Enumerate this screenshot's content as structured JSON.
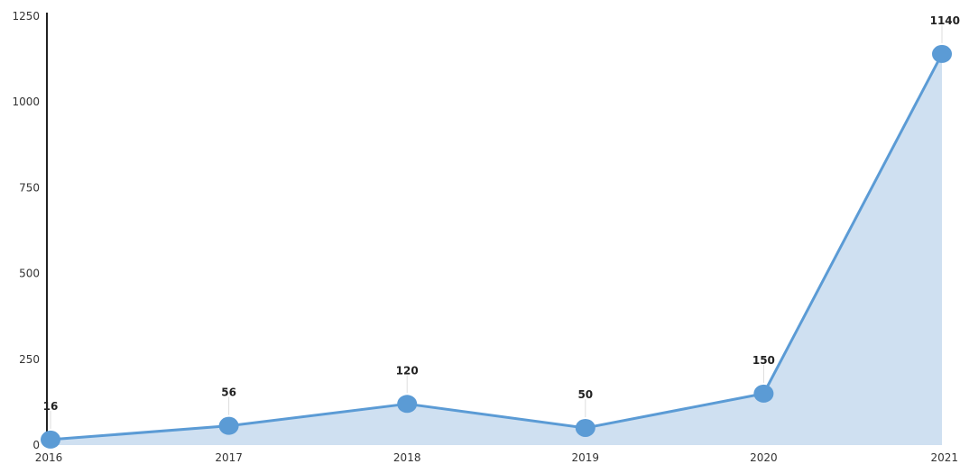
{
  "chart_data": {
    "type": "area",
    "title": "",
    "xlabel": "",
    "ylabel": "",
    "categories": [
      "2016",
      "2017",
      "2018",
      "2019",
      "2020",
      "2021"
    ],
    "series": [
      {
        "values": [
          16,
          56,
          120,
          50,
          150,
          1140
        ]
      }
    ],
    "ylim": [
      0,
      1250
    ],
    "yticks": [
      0,
      250,
      500,
      750,
      1000,
      1250
    ],
    "data_labels": [
      "16",
      "56",
      "120",
      "50",
      "150",
      "1140"
    ],
    "grid": false,
    "legend": "none",
    "colors": {
      "line": "#5b9bd5",
      "marker": "#5b9bd5",
      "fill": "#cfe0f1",
      "axis": "#222222",
      "leader": "#dddddd"
    }
  }
}
